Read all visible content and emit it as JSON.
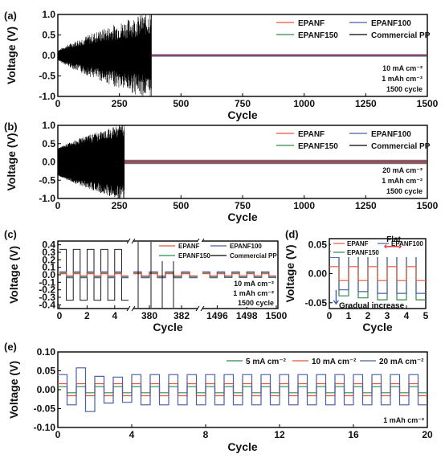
{
  "chart_data": [
    {
      "panel": "(a)",
      "type": "line",
      "xlabel": "Cycle",
      "ylabel": "Voltage (V)",
      "xlim": [
        0,
        1500
      ],
      "ylim": [
        -1.0,
        1.0
      ],
      "xticks": [
        "0",
        "250",
        "500",
        "750",
        "1000",
        "1250",
        "1500"
      ],
      "yticks": [
        "-1.0",
        "-0.5",
        "0.0",
        "0.5",
        "1.0"
      ],
      "legend_position": "top-right",
      "series": [
        {
          "name": "EPANF",
          "color": "#e8543a",
          "amplitude": 0.02
        },
        {
          "name": "EPANF100",
          "color": "#4b5fa8",
          "amplitude": 0.03
        },
        {
          "name": "EPANF150",
          "color": "#2f8a4c",
          "amplitude": 0.03
        },
        {
          "name": "Commercial PP",
          "color": "#000000",
          "amplitude_start": 0.1,
          "amplitude_end": 1.0,
          "end_cycle": 380
        }
      ],
      "annotations": [
        "10 mA cm⁻²",
        "1 mAh cm⁻²",
        "1500 cycle"
      ]
    },
    {
      "panel": "(b)",
      "type": "line",
      "xlabel": "Cycle",
      "ylabel": "Voltage (V)",
      "xlim": [
        0,
        1500
      ],
      "ylim": [
        -1.0,
        1.0
      ],
      "xticks": [
        "0",
        "250",
        "500",
        "750",
        "1000",
        "1250",
        "1500"
      ],
      "yticks": [
        "-1.0",
        "-0.5",
        "0.0",
        "0.5",
        "1.0"
      ],
      "legend_position": "top-right",
      "series": [
        {
          "name": "EPANF",
          "color": "#e8543a",
          "amplitude": 0.04
        },
        {
          "name": "EPANF100",
          "color": "#4b5fa8",
          "amplitude": 0.05
        },
        {
          "name": "EPANF150",
          "color": "#2f8a4c",
          "amplitude": 0.06
        },
        {
          "name": "Commercial PP",
          "color": "#000000",
          "amplitude_start": 0.35,
          "amplitude_end": 1.0,
          "end_cycle": 270
        }
      ],
      "annotations": [
        "20 mA cm⁻²",
        "1 mAh cm⁻²",
        "1500 cycle"
      ]
    },
    {
      "panel": "(c)",
      "type": "line",
      "xlabel": "Cycle",
      "ylabel": "Voltage (V)",
      "ylim": [
        -0.45,
        0.45
      ],
      "yticks": [
        "-0.4",
        "-0.3",
        "-0.2",
        "-0.1",
        "0.0",
        "0.1",
        "0.2",
        "0.3",
        "0.4"
      ],
      "x_segments": [
        {
          "range": [
            0,
            5
          ],
          "ticks": [
            "0",
            "2",
            "4"
          ]
        },
        {
          "range": [
            379,
            383
          ],
          "ticks": [
            "380",
            "382"
          ]
        },
        {
          "range": [
            1495,
            1500
          ],
          "ticks": [
            "1496",
            "1498",
            "1500"
          ]
        }
      ],
      "legend_position": "top-right",
      "series": [
        {
          "name": "EPANF",
          "color": "#e8543a",
          "amplitude": 0.015
        },
        {
          "name": "EPANF100",
          "color": "#4b5fa8",
          "amplitude": 0.04
        },
        {
          "name": "EPANF150",
          "color": "#2f8a4c",
          "amplitude": 0.03
        },
        {
          "name": "Commercial PP",
          "color": "#000000",
          "amplitude": 0.34
        }
      ],
      "annotations": [
        "10 mA cm⁻²",
        "1 mAh cm⁻²",
        "1500 cycle"
      ]
    },
    {
      "panel": "(d)",
      "type": "line",
      "xlabel": "Cycle",
      "ylabel": "Voltage (V)",
      "xlim": [
        0,
        5
      ],
      "ylim": [
        -0.06,
        0.06
      ],
      "xticks": [
        "0",
        "1",
        "2",
        "3",
        "4",
        "5"
      ],
      "yticks": [
        "-0.05",
        "0.00",
        "0.05"
      ],
      "legend_position": "top",
      "series": [
        {
          "name": "EPANF",
          "color": "#e8543a",
          "amplitude": 0.012
        },
        {
          "name": "EPANF100",
          "color": "#4b5fa8",
          "amplitude": 0.034
        },
        {
          "name": "EPANF150",
          "color": "#2f8a4c",
          "amplitude": 0.045
        }
      ],
      "annotations": [
        "Flat",
        "Gradual increase"
      ]
    },
    {
      "panel": "(e)",
      "type": "line",
      "xlabel": "Cycle",
      "ylabel": "Voltage (V)",
      "xlim": [
        0,
        20
      ],
      "ylim": [
        -0.1,
        0.1
      ],
      "xticks": [
        "0",
        "4",
        "8",
        "12",
        "16",
        "20"
      ],
      "yticks": [
        "-0.10",
        "-0.05",
        "0.00",
        "0.05",
        "0.10"
      ],
      "legend_position": "top-right",
      "series": [
        {
          "name": "5 mA cm⁻²",
          "color": "#2f8a4c",
          "amplitude": 0.008
        },
        {
          "name": "10 mA cm⁻²",
          "color": "#e8543a",
          "amplitude": 0.016
        },
        {
          "name": "20 mA cm⁻²",
          "color": "#4b5fa8",
          "amplitude": 0.04
        }
      ],
      "annotations": [
        "1 mAh cm⁻²"
      ]
    }
  ]
}
